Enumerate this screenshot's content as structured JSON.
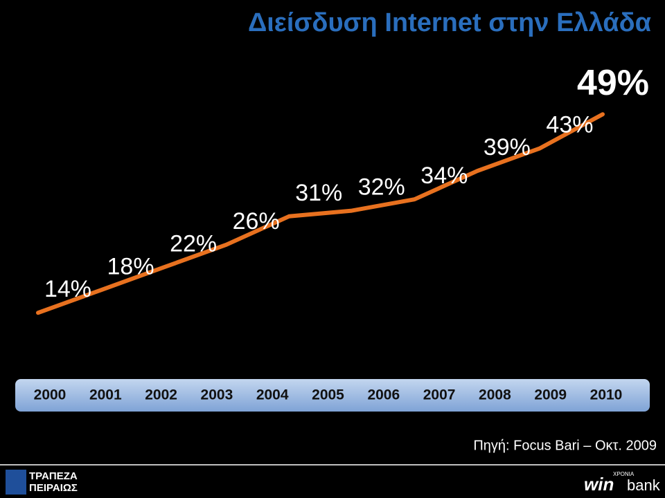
{
  "chart_data": {
    "type": "line",
    "title": "Διείσδυση Internet στην Ελλάδα",
    "x": [
      0,
      1,
      2,
      3,
      4,
      5,
      6,
      7,
      8,
      9
    ],
    "values": [
      14,
      18,
      22,
      26,
      31,
      32,
      34,
      39,
      43,
      49
    ],
    "value_labels": [
      "14%",
      "18%",
      "22%",
      "26%",
      "31%",
      "32%",
      "34%",
      "39%",
      "43%",
      "49%"
    ],
    "color": "#e8711f",
    "ylim": [
      0,
      60
    ],
    "years": [
      "2000",
      "2001",
      "2002",
      "2003",
      "2004",
      "2005",
      "2006",
      "2007",
      "2008",
      "2009",
      "2010"
    ],
    "source": "Πηγή: Focus Bari – Οκτ. 2009"
  },
  "footer": {
    "bank_line1": "ΤΡΑΠΕΖΑ",
    "bank_line2": "ΠΕΙΡΑΙΩΣ",
    "years_badge": "ΧΡΟΝΙΑ",
    "brand_a": "win",
    "brand_b": "bank"
  }
}
